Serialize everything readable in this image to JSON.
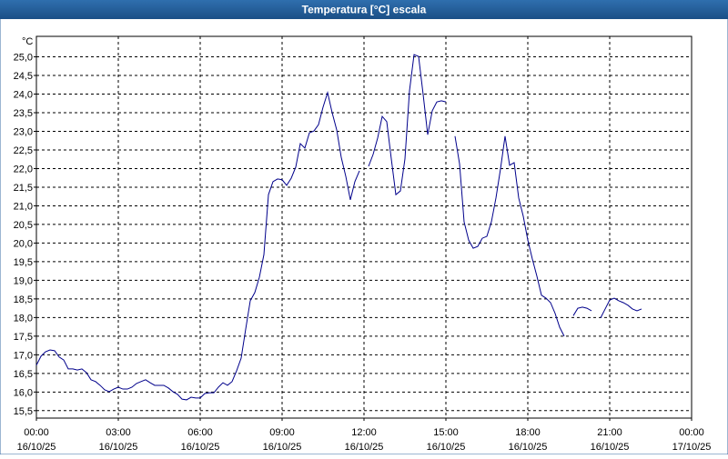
{
  "chart_data": {
    "type": "line",
    "title": "Temperatura [°C] escala",
    "y_unit": "°C",
    "x": [
      0,
      10,
      20,
      30,
      40,
      50,
      60,
      70,
      80,
      90,
      100,
      110,
      120,
      130,
      140,
      150,
      160,
      170,
      180,
      190,
      200,
      210,
      220,
      230,
      240,
      250,
      260,
      270,
      280,
      290,
      300,
      310,
      320,
      330,
      340,
      350,
      360,
      370,
      380,
      390,
      400,
      410,
      420,
      430,
      440,
      450,
      460,
      470,
      480,
      490,
      500,
      510,
      520,
      530,
      540,
      550,
      560,
      570,
      580,
      590,
      600,
      610,
      620,
      630,
      640,
      650,
      660,
      670,
      680,
      690,
      700,
      710,
      720,
      730,
      740,
      750,
      760,
      770,
      780,
      790,
      800,
      810,
      820,
      830,
      840,
      850,
      860,
      870,
      880,
      890,
      900,
      910,
      920,
      930,
      940,
      950,
      960,
      970,
      980,
      990,
      1000,
      1010,
      1020,
      1030,
      1040,
      1050,
      1060,
      1070,
      1080,
      1090,
      1100,
      1110,
      1120,
      1130,
      1140,
      1150,
      1160,
      1170,
      1180,
      1190,
      1200,
      1210,
      1220,
      1230,
      1240,
      1250,
      1260,
      1270,
      1280,
      1290,
      1300,
      1310,
      1320,
      1330
    ],
    "series": [
      {
        "name": "Temperatura",
        "color": "#00008b",
        "values": [
          16.72,
          16.96,
          17.08,
          17.13,
          17.11,
          16.94,
          16.86,
          16.62,
          16.62,
          16.59,
          16.62,
          16.52,
          16.33,
          16.28,
          16.18,
          16.06,
          16.01,
          16.08,
          16.13,
          16.08,
          16.08,
          16.13,
          16.23,
          16.28,
          16.33,
          16.25,
          16.18,
          16.18,
          16.18,
          16.11,
          16.01,
          15.94,
          15.81,
          15.79,
          15.86,
          15.84,
          15.84,
          15.96,
          15.98,
          15.98,
          16.13,
          16.25,
          16.18,
          16.28,
          16.57,
          16.91,
          17.69,
          18.45,
          18.67,
          19.08,
          19.69,
          21.3,
          21.65,
          21.72,
          21.7,
          21.55,
          21.74,
          22.04,
          22.67,
          22.55,
          22.96,
          23.01,
          23.18,
          23.65,
          24.04,
          23.5,
          23.04,
          22.3,
          21.79,
          21.16,
          21.65,
          21.94,
          null,
          22.06,
          22.38,
          22.82,
          23.4,
          23.26,
          22.26,
          21.3,
          21.4,
          22.26,
          24.09,
          25.06,
          25.01,
          23.99,
          22.91,
          23.55,
          23.79,
          23.82,
          23.79,
          null,
          22.87,
          22.13,
          20.57,
          20.08,
          19.86,
          19.91,
          20.13,
          20.18,
          20.57,
          21.21,
          21.99,
          22.87,
          22.09,
          22.16,
          21.21,
          20.72,
          20.08,
          19.57,
          19.11,
          18.6,
          18.52,
          18.4,
          18.11,
          17.74,
          17.5,
          null,
          18.05,
          18.25,
          18.28,
          18.25,
          18.18,
          null,
          17.99,
          18.23,
          18.47,
          18.52,
          18.45,
          18.4,
          18.33,
          18.23,
          18.18,
          18.23
        ]
      }
    ],
    "xlim": [
      0,
      1440
    ],
    "xticks": [
      {
        "value": 0,
        "label": "00:00"
      },
      {
        "value": 180,
        "label": "03:00"
      },
      {
        "value": 360,
        "label": "06:00"
      },
      {
        "value": 540,
        "label": "09:00"
      },
      {
        "value": 720,
        "label": "12:00"
      },
      {
        "value": 900,
        "label": "15:00"
      },
      {
        "value": 1080,
        "label": "18:00"
      },
      {
        "value": 1260,
        "label": "21:00"
      },
      {
        "value": 1440,
        "label": "00:00"
      }
    ],
    "xtick_dates": [
      "16/10/25",
      "16/10/25",
      "16/10/25",
      "16/10/25",
      "16/10/25",
      "16/10/25",
      "16/10/25",
      "16/10/25",
      "17/10/25"
    ],
    "ylim": [
      15.3,
      25.55
    ],
    "yticks": [
      {
        "value": 15.5,
        "label": "15,5"
      },
      {
        "value": 16,
        "label": "16,0"
      },
      {
        "value": 16.5,
        "label": "16,5"
      },
      {
        "value": 17,
        "label": "17,0"
      },
      {
        "value": 17.5,
        "label": "17,5"
      },
      {
        "value": 18,
        "label": "18,0"
      },
      {
        "value": 18.5,
        "label": "18,5"
      },
      {
        "value": 19,
        "label": "19,0"
      },
      {
        "value": 19.5,
        "label": "19,5"
      },
      {
        "value": 20,
        "label": "20,0"
      },
      {
        "value": 20.5,
        "label": "20,5"
      },
      {
        "value": 21,
        "label": "21,0"
      },
      {
        "value": 21.5,
        "label": "21,5"
      },
      {
        "value": 22,
        "label": "22,0"
      },
      {
        "value": 22.5,
        "label": "22,5"
      },
      {
        "value": 23,
        "label": "23,0"
      },
      {
        "value": 23.5,
        "label": "23,5"
      },
      {
        "value": 24,
        "label": "24,0"
      },
      {
        "value": 24.5,
        "label": "24,5"
      },
      {
        "value": 25,
        "label": "25,0"
      }
    ],
    "grid": true
  }
}
